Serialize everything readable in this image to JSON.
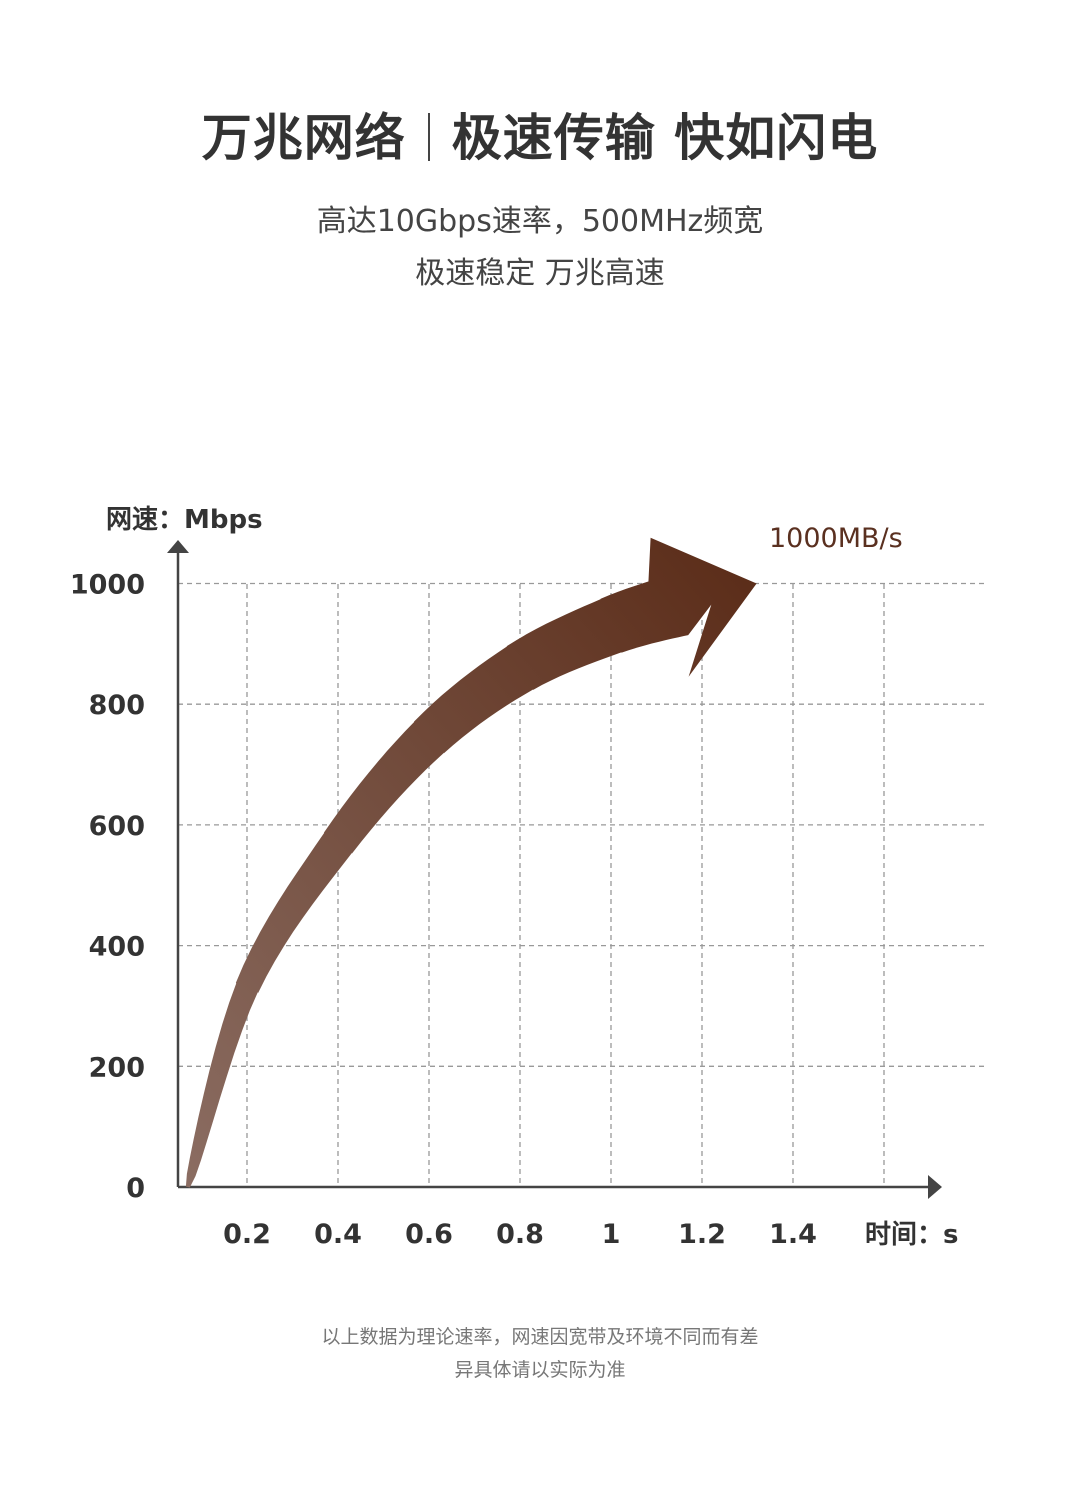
{
  "header": {
    "title_left": "万兆网络",
    "title_right": "极速传输 快如闪电",
    "subtitle_line1": "高达10Gbps速率，500MHz频宽",
    "subtitle_line2": "极速稳定 万兆高速"
  },
  "footer": {
    "line1": "以上数据为理论速率，网速因宽带及环境不同而有差",
    "line2": "异具体请以实际为准"
  },
  "chart_data": {
    "type": "line",
    "title": "",
    "ylabel": "网速：Mbps",
    "xlabel": "时间：s",
    "ylim": [
      0,
      1000
    ],
    "xlim": [
      0,
      1.6
    ],
    "yticks": [
      "0",
      "200",
      "400",
      "600",
      "800",
      "1000"
    ],
    "xticks": [
      "0.2",
      "0.4",
      "0.6",
      "0.8",
      "1",
      "1.2",
      "1.4"
    ],
    "grid": true,
    "annotation": "1000MB/s",
    "series": [
      {
        "name": "speed",
        "x": [
          0.07,
          0.2,
          0.4,
          0.6,
          0.8,
          1.0,
          1.15,
          1.32
        ],
        "y": [
          0,
          330,
          570,
          745,
          860,
          930,
          965,
          1000
        ]
      }
    ],
    "colors": {
      "arrow_start": "#8b6d62",
      "arrow_end": "#5a2b17",
      "annotation": "#5a3020",
      "axis": "#444444",
      "grid": "#999999"
    }
  }
}
